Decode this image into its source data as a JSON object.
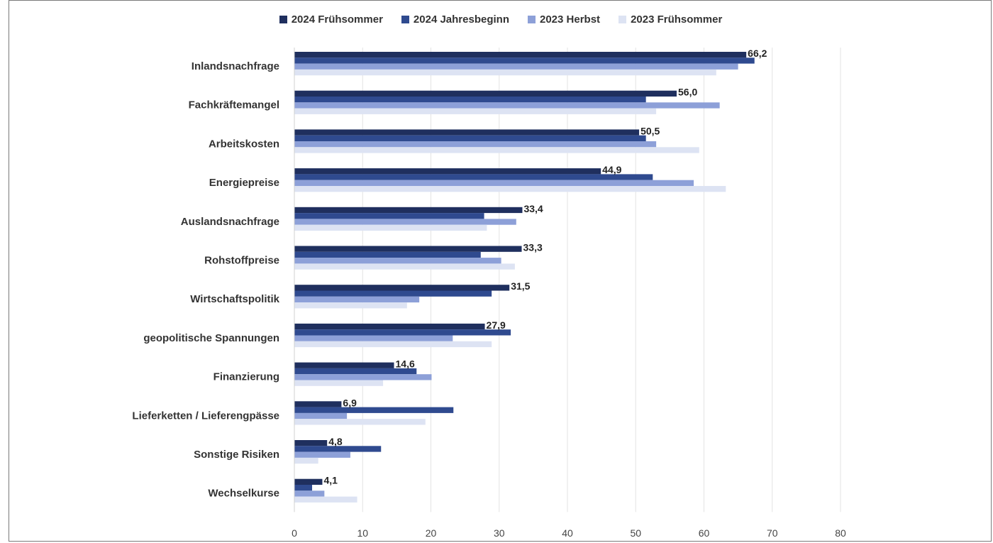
{
  "chart_data": {
    "type": "bar",
    "orientation": "horizontal",
    "categories": [
      "Inlandsnachfrage",
      "Fachkräftemangel",
      "Arbeitskosten",
      "Energiepreise",
      "Auslandsnachfrage",
      "Rohstoffpreise",
      "Wirtschaftspolitik",
      "geopolitische Spannungen",
      "Finanzierung",
      "Lieferketten / Lieferengpässe",
      "Sonstige Risiken",
      "Wechselkurse"
    ],
    "series": [
      {
        "name": "2024 Frühsommer",
        "color": "#1f2f5e",
        "values": [
          66.2,
          56.0,
          50.5,
          44.9,
          33.4,
          33.3,
          31.5,
          27.9,
          14.6,
          6.9,
          4.8,
          4.1
        ]
      },
      {
        "name": "2024 Jahresbeginn",
        "color": "#2f4a8f",
        "values": [
          67.4,
          51.5,
          51.5,
          52.5,
          27.8,
          27.3,
          28.9,
          31.7,
          17.9,
          23.3,
          12.7,
          2.6
        ]
      },
      {
        "name": "2023 Herbst",
        "color": "#8da0d8",
        "values": [
          65.0,
          62.3,
          53.0,
          58.5,
          32.5,
          30.3,
          18.3,
          23.2,
          20.1,
          7.7,
          8.2,
          4.4
        ]
      },
      {
        "name": "2023 Frühsommer",
        "color": "#dde3f3",
        "values": [
          61.8,
          53.0,
          59.3,
          63.2,
          28.2,
          32.3,
          16.5,
          28.9,
          13.0,
          19.2,
          3.5,
          9.2
        ]
      }
    ],
    "data_labels": [
      "66,2",
      "56,0",
      "50,5",
      "44,9",
      "33,4",
      "33,3",
      "31,5",
      "27,9",
      "14,6",
      "6,9",
      "4,8",
      "4,1"
    ],
    "x_ticks": [
      "0",
      "10",
      "20",
      "30",
      "40",
      "50",
      "60",
      "70",
      "80"
    ],
    "xlim": [
      0,
      80
    ],
    "grid": true,
    "legend_position": "top"
  }
}
